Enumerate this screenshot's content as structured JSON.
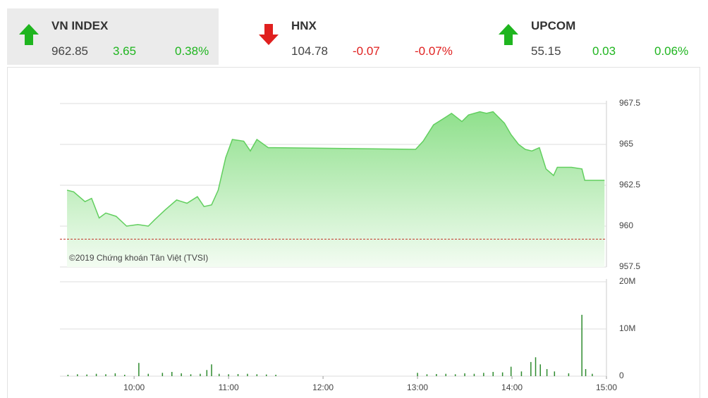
{
  "tickers": [
    {
      "name": "VN INDEX",
      "price": "962.85",
      "change": "3.65",
      "percent": "0.38%",
      "color": "#1fb51f"
    },
    {
      "name": "HNX",
      "price": "104.78",
      "change": "-0.07",
      "percent": "-0.07%",
      "color": "#e0201f"
    },
    {
      "name": "UPCOM",
      "price": "55.15",
      "change": "0.03",
      "percent": "0.06%",
      "color": "#1fb51f"
    }
  ],
  "chart_data": [
    {
      "type": "area",
      "watermark": "©2019 Chứng khoán Tân Việt (TVSI)",
      "color": "#62cf5f",
      "reference": 959.2,
      "reference_color": "#c0392b",
      "xlim": [
        9.2,
        15
      ],
      "ylim": [
        957.5,
        967.5
      ],
      "yticks": [
        957.5,
        960,
        962.5,
        965,
        967.5
      ],
      "grid": true,
      "x": [
        9.29,
        9.36,
        9.48,
        9.55,
        9.63,
        9.7,
        9.81,
        9.92,
        10.04,
        10.15,
        10.22,
        10.33,
        10.45,
        10.56,
        10.67,
        10.74,
        10.82,
        10.89,
        10.97,
        11.04,
        11.16,
        11.23,
        11.3,
        11.42,
        11.49,
        12.98,
        13.06,
        13.17,
        13.28,
        13.36,
        13.47,
        13.54,
        13.66,
        13.73,
        13.8,
        13.92,
        13.99,
        14.07,
        14.14,
        14.21,
        14.29,
        14.36,
        14.44,
        14.48,
        14.63,
        14.74,
        14.77,
        14.98
      ],
      "values": [
        962.2,
        962.1,
        961.5,
        961.7,
        960.5,
        960.8,
        960.6,
        960.0,
        960.1,
        960.0,
        960.4,
        961.0,
        961.6,
        961.4,
        961.8,
        961.2,
        961.3,
        962.2,
        964.2,
        965.3,
        965.2,
        964.6,
        965.3,
        964.8,
        964.8,
        964.7,
        965.2,
        966.2,
        966.6,
        966.9,
        966.4,
        966.8,
        967.0,
        966.9,
        967.0,
        966.3,
        965.6,
        965.0,
        964.7,
        964.6,
        964.8,
        963.5,
        963.1,
        963.6,
        963.6,
        963.5,
        962.8,
        962.8
      ]
    },
    {
      "type": "bar",
      "color": "#2e8b2e",
      "xlim": [
        9.2,
        15
      ],
      "ylim": [
        0,
        20000000
      ],
      "yticks": [
        0,
        {
          "value": 10000000,
          "label": "10M"
        },
        {
          "value": 20000000,
          "label": "20M"
        }
      ],
      "grid": true,
      "xticks": [
        {
          "value": 10,
          "label": "10:00"
        },
        {
          "value": 11,
          "label": "11:00"
        },
        {
          "value": 12,
          "label": "12:00"
        },
        {
          "value": 13,
          "label": "13:00"
        },
        {
          "value": 14,
          "label": "14:00"
        },
        {
          "value": 15,
          "label": "15:00"
        }
      ],
      "x": [
        9.3,
        9.4,
        9.5,
        9.6,
        9.7,
        9.8,
        9.9,
        10.05,
        10.15,
        10.3,
        10.4,
        10.5,
        10.6,
        10.7,
        10.77,
        10.82,
        10.9,
        11.0,
        11.1,
        11.2,
        11.3,
        11.4,
        11.5,
        13.0,
        13.1,
        13.2,
        13.3,
        13.4,
        13.5,
        13.6,
        13.7,
        13.8,
        13.9,
        13.99,
        14.1,
        14.2,
        14.25,
        14.3,
        14.37,
        14.45,
        14.6,
        14.74,
        14.78,
        14.85
      ],
      "values": [
        300000,
        400000,
        350000,
        500000,
        400000,
        600000,
        300000,
        2800000,
        500000,
        700000,
        900000,
        600000,
        400000,
        500000,
        1300000,
        2500000,
        500000,
        400000,
        450000,
        500000,
        400000,
        350000,
        300000,
        700000,
        400000,
        450000,
        500000,
        400000,
        600000,
        500000,
        700000,
        900000,
        800000,
        2000000,
        1000000,
        3000000,
        4000000,
        2500000,
        1500000,
        1000000,
        600000,
        13000000,
        1500000,
        500000
      ]
    }
  ]
}
